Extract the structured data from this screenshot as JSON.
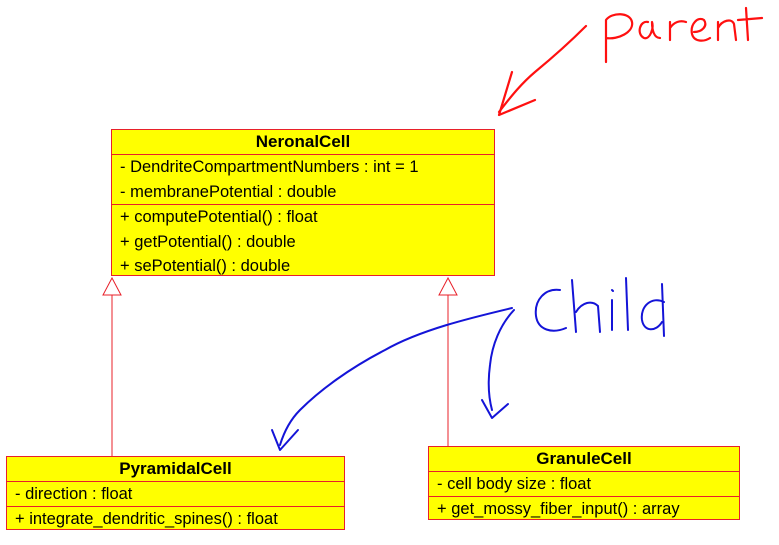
{
  "diagram": {
    "classes": {
      "neuronal_cell": {
        "name": "NeronalCell",
        "attributes": [
          "- DendriteCompartmentNumbers : int = 1",
          "- membranePotential : double"
        ],
        "operations": [
          "+ computePotential() : float",
          "+ getPotential() : double",
          "+ sePotential() : double"
        ]
      },
      "pyramidal_cell": {
        "name": "PyramidalCell",
        "attributes": [
          "- direction : float"
        ],
        "operations": [
          "+ integrate_dendritic_spines() : float"
        ]
      },
      "granule_cell": {
        "name": "GranuleCell",
        "attributes": [
          "- cell body size : float"
        ],
        "operations": [
          "+ get_mossy_fiber_input() : array"
        ]
      }
    },
    "relations": [
      {
        "type": "generalization",
        "from": "PyramidalCell",
        "to": "NeronalCell"
      },
      {
        "type": "generalization",
        "from": "GranuleCell",
        "to": "NeronalCell"
      }
    ],
    "annotations": {
      "parent": "Parent",
      "child": "Child"
    },
    "colors": {
      "box_fill": "#ffff00",
      "box_border": "#e8202a",
      "parent_ink": "#ff1010",
      "child_ink": "#1414d8",
      "connector": "#e8202a"
    }
  }
}
